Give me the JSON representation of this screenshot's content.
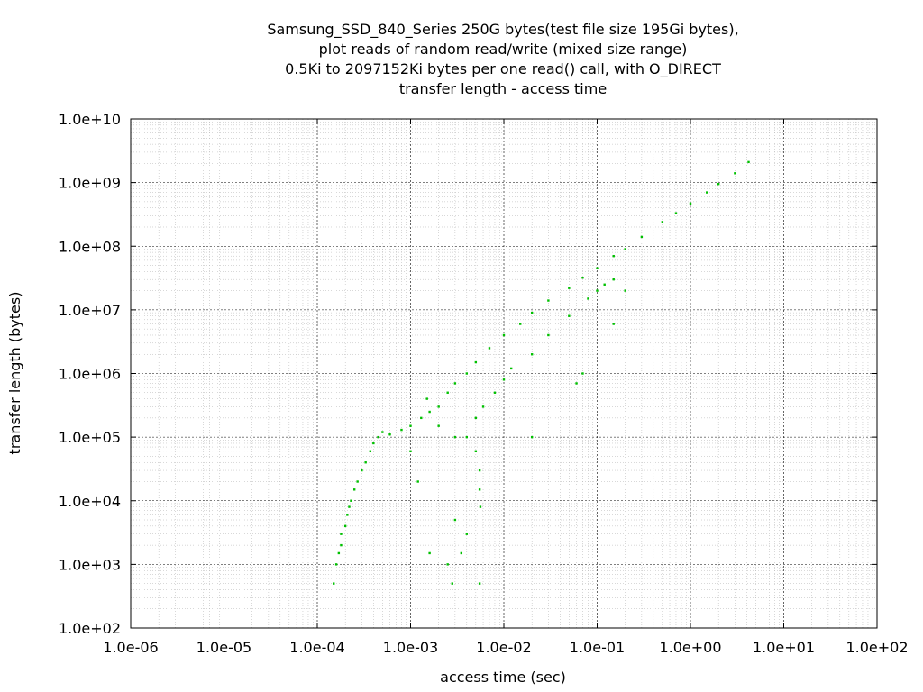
{
  "chart_data": {
    "type": "scatter",
    "title_lines": [
      "Samsung_SSD_840_Series 250G bytes(test file size 195Gi bytes),",
      "plot reads of random read/write (mixed size range)",
      "0.5Ki to 2097152Ki bytes per one read() call, with O_DIRECT",
      "transfer length - access time"
    ],
    "xlabel": "access time (sec)",
    "ylabel": "transfer length (bytes)",
    "x_scale": "log",
    "y_scale": "log",
    "xlim": [
      1e-06,
      100
    ],
    "ylim": [
      100,
      10000000000
    ],
    "x_ticks": [
      1e-06,
      1e-05,
      0.0001,
      0.001,
      0.01,
      0.1,
      1,
      10,
      100
    ],
    "x_tick_labels": [
      "1.0e-06",
      "1.0e-05",
      "1.0e-04",
      "1.0e-03",
      "1.0e-02",
      "1.0e-01",
      "1.0e+00",
      "1.0e+01",
      "1.0e+02"
    ],
    "y_ticks": [
      100,
      1000,
      10000,
      100000,
      1000000,
      10000000,
      100000000,
      1000000000,
      10000000000
    ],
    "y_tick_labels": [
      "1.0e+02",
      "1.0e+03",
      "1.0e+04",
      "1.0e+05",
      "1.0e+06",
      "1.0e+07",
      "1.0e+08",
      "1.0e+09",
      "1.0e+10"
    ],
    "grid": true,
    "minor_grid": true,
    "point_color": "#00c000",
    "series": [
      {
        "values": [
          {
            "x": 0.00015,
            "y": 500
          },
          {
            "x": 0.00016,
            "y": 1000
          },
          {
            "x": 0.00017,
            "y": 1500
          },
          {
            "x": 0.00018,
            "y": 2000
          },
          {
            "x": 0.00018,
            "y": 3000
          },
          {
            "x": 0.0002,
            "y": 4000
          },
          {
            "x": 0.00021,
            "y": 6000
          },
          {
            "x": 0.00022,
            "y": 8000
          },
          {
            "x": 0.00023,
            "y": 10000
          },
          {
            "x": 0.00025,
            "y": 15000
          },
          {
            "x": 0.00027,
            "y": 20000
          },
          {
            "x": 0.0003,
            "y": 30000
          },
          {
            "x": 0.00033,
            "y": 40000
          },
          {
            "x": 0.00037,
            "y": 60000
          },
          {
            "x": 0.0004,
            "y": 80000
          },
          {
            "x": 0.00045,
            "y": 100000
          },
          {
            "x": 0.0005,
            "y": 120000
          },
          {
            "x": 0.0006,
            "y": 110000
          },
          {
            "x": 0.0008,
            "y": 130000
          },
          {
            "x": 0.001,
            "y": 150000
          },
          {
            "x": 0.0013,
            "y": 200000
          },
          {
            "x": 0.0016,
            "y": 250000
          },
          {
            "x": 0.002,
            "y": 300000
          },
          {
            "x": 0.0025,
            "y": 500000
          },
          {
            "x": 0.003,
            "y": 700000
          },
          {
            "x": 0.004,
            "y": 1000000
          },
          {
            "x": 0.005,
            "y": 1500000
          },
          {
            "x": 0.007,
            "y": 2500000
          },
          {
            "x": 0.01,
            "y": 4000000
          },
          {
            "x": 0.015,
            "y": 6000000
          },
          {
            "x": 0.02,
            "y": 9000000
          },
          {
            "x": 0.03,
            "y": 14000000
          },
          {
            "x": 0.05,
            "y": 22000000
          },
          {
            "x": 0.07,
            "y": 32000000
          },
          {
            "x": 0.1,
            "y": 45000000
          },
          {
            "x": 0.15,
            "y": 70000000
          },
          {
            "x": 0.2,
            "y": 90000000
          },
          {
            "x": 0.3,
            "y": 140000000
          },
          {
            "x": 0.5,
            "y": 240000000
          },
          {
            "x": 0.7,
            "y": 330000000
          },
          {
            "x": 1.0,
            "y": 470000000
          },
          {
            "x": 1.5,
            "y": 700000000
          },
          {
            "x": 2.0,
            "y": 950000000
          },
          {
            "x": 3.0,
            "y": 1400000000
          },
          {
            "x": 4.2,
            "y": 2100000000
          },
          {
            "x": 0.004,
            "y": 100000
          },
          {
            "x": 0.005,
            "y": 60000
          },
          {
            "x": 0.0055,
            "y": 30000
          },
          {
            "x": 0.0055,
            "y": 15000
          },
          {
            "x": 0.0056,
            "y": 8000
          },
          {
            "x": 0.005,
            "y": 200000
          },
          {
            "x": 0.006,
            "y": 300000
          },
          {
            "x": 0.008,
            "y": 500000
          },
          {
            "x": 0.01,
            "y": 800000
          },
          {
            "x": 0.012,
            "y": 1200000
          },
          {
            "x": 0.02,
            "y": 2000000
          },
          {
            "x": 0.03,
            "y": 4000000
          },
          {
            "x": 0.05,
            "y": 8000000
          },
          {
            "x": 0.08,
            "y": 15000000
          },
          {
            "x": 0.12,
            "y": 25000000
          },
          {
            "x": 0.1,
            "y": 20000000
          },
          {
            "x": 0.15,
            "y": 30000000
          },
          {
            "x": 0.003,
            "y": 100000
          },
          {
            "x": 0.002,
            "y": 150000
          },
          {
            "x": 0.0015,
            "y": 400000
          },
          {
            "x": 0.001,
            "y": 60000
          },
          {
            "x": 0.0012,
            "y": 20000
          },
          {
            "x": 0.0016,
            "y": 1500
          },
          {
            "x": 0.0025,
            "y": 1000
          },
          {
            "x": 0.0035,
            "y": 1500
          },
          {
            "x": 0.004,
            "y": 3000
          },
          {
            "x": 0.003,
            "y": 5000
          },
          {
            "x": 0.0028,
            "y": 500
          },
          {
            "x": 0.0055,
            "y": 500
          },
          {
            "x": 0.02,
            "y": 100000
          },
          {
            "x": 0.06,
            "y": 700000
          },
          {
            "x": 0.07,
            "y": 1000000
          },
          {
            "x": 0.15,
            "y": 6000000
          },
          {
            "x": 0.2,
            "y": 20000000
          }
        ]
      }
    ]
  }
}
